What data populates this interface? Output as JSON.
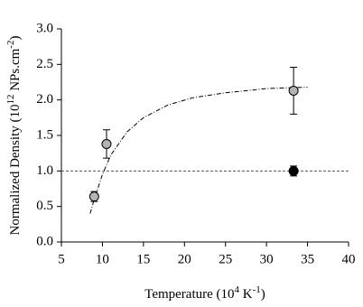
{
  "chart_data": {
    "type": "scatter",
    "xlabel": [
      "Temperature (10",
      "4",
      " K",
      "-1",
      ")"
    ],
    "ylabel": [
      "Normalized Density (10",
      "12",
      " NPs.cm",
      "-2",
      ")"
    ],
    "xlim": [
      5,
      40
    ],
    "xticks": [
      5,
      10,
      15,
      20,
      25,
      30,
      35,
      40
    ],
    "ylim": [
      0,
      3
    ],
    "yticks": [
      {
        "value": 0,
        "label": "0.0"
      },
      {
        "value": 0.5,
        "label": "0.5"
      },
      {
        "value": 1,
        "label": "1.0"
      },
      {
        "value": 1.5,
        "label": "1.5"
      },
      {
        "value": 2,
        "label": "2.0"
      },
      {
        "value": 2.5,
        "label": "2.5"
      },
      {
        "value": 3,
        "label": "3.0"
      }
    ],
    "hline": 1.0,
    "series": [
      {
        "color": "#b4b4b4",
        "x": [
          9,
          10.5,
          33.3
        ],
        "values": [
          0.64,
          1.38,
          2.13
        ],
        "yerr": [
          0.07,
          0.2,
          0.33
        ]
      },
      {
        "color": "#000000",
        "x": [
          33.3
        ],
        "values": [
          1.0
        ],
        "yerr": [
          0.07
        ]
      }
    ],
    "fit": {
      "x": [
        8.5,
        9,
        10,
        11,
        13,
        15,
        18,
        21,
        25,
        30,
        35
      ],
      "values": [
        0.4,
        0.6,
        0.95,
        1.22,
        1.55,
        1.75,
        1.93,
        2.03,
        2.1,
        2.16,
        2.18
      ]
    }
  }
}
